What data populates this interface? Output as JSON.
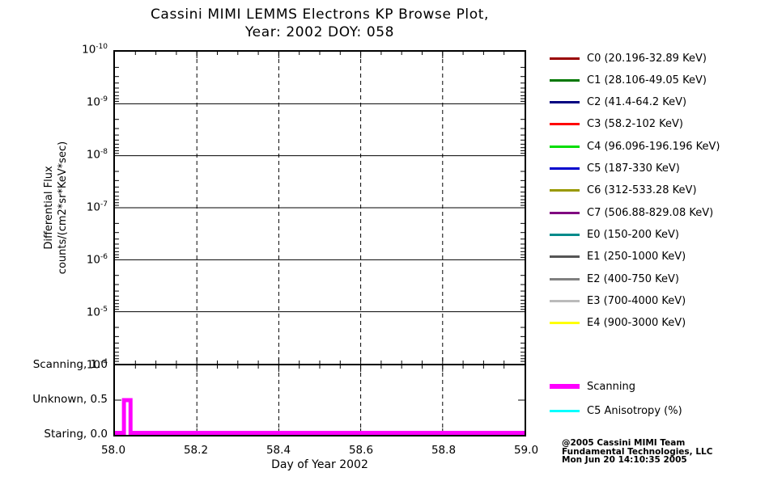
{
  "title": {
    "line1": "Cassini MIMI LEMMS Electrons KP Browse Plot,",
    "line2": "Year: 2002 DOY: 058"
  },
  "axes": {
    "y_label_line1": "Differential Flux",
    "y_label_line2": "counts/(cm2*sr*KeV*sec)",
    "x_label": "Day of Year 2002"
  },
  "status_legend": [
    {
      "label": "Scanning",
      "color": "#FF00FF",
      "thickness": 6
    },
    {
      "label": "C5 Anisotropy (%)",
      "color": "#00FFFF",
      "thickness": 3
    }
  ],
  "credit": {
    "line1": "@2005 Cassini MIMI Team",
    "line2": "Fundamental Technologies, LLC",
    "line3": "Mon Jun 20 14:10:35 2005"
  },
  "chart_data": [
    {
      "type": "line",
      "title": "Cassini MIMI LEMMS Electrons KP Browse Plot, Year: 2002 DOY: 058",
      "xlabel": "Day of Year 2002",
      "ylabel": "Differential Flux counts/(cm2*sr*KeV*sec)",
      "x_range": [
        58.0,
        59.0
      ],
      "x_ticks": [
        58.0,
        58.2,
        58.4,
        58.6,
        58.8,
        59.0
      ],
      "y_scale": "log",
      "y_ticks_top_to_bottom": [
        "1e-10",
        "1e-9",
        "1e-8",
        "1e-7",
        "1e-6",
        "1e-5",
        "1e-4"
      ],
      "y_tick_exponents": [
        -10,
        -9,
        -8,
        -7,
        -6,
        -5,
        -4
      ],
      "grid": {
        "horizontal": "solid",
        "vertical": "dashed"
      },
      "legend_position": "right",
      "series": [
        {
          "name": "C0 (20.196-32.89 KeV)",
          "color": "#990000",
          "values": []
        },
        {
          "name": "C1 (28.106-49.05 KeV)",
          "color": "#007700",
          "values": []
        },
        {
          "name": "C2 (41.4-64.2 KeV)",
          "color": "#000080",
          "values": []
        },
        {
          "name": "C3 (58.2-102 KeV)",
          "color": "#FF0000",
          "values": []
        },
        {
          "name": "C4 (96.096-196.196 KeV)",
          "color": "#00DD00",
          "values": []
        },
        {
          "name": "C5 (187-330 KeV)",
          "color": "#0000CD",
          "values": []
        },
        {
          "name": "C6 (312-533.28 KeV)",
          "color": "#999900",
          "values": []
        },
        {
          "name": "C7 (506.88-829.08 KeV)",
          "color": "#800080",
          "values": []
        },
        {
          "name": "E0 (150-200 KeV)",
          "color": "#008B8B",
          "values": []
        },
        {
          "name": "E1 (250-1000 KeV)",
          "color": "#555555",
          "values": []
        },
        {
          "name": "E2 (400-750 KeV)",
          "color": "#808080",
          "values": []
        },
        {
          "name": "E3 (700-4000 KeV)",
          "color": "#BBBBBB",
          "values": []
        },
        {
          "name": "E4 (900-3000 KeV)",
          "color": "#FFFF00",
          "values": []
        }
      ],
      "note": "No flux data is plotted for this interval; the main plot area is empty."
    },
    {
      "type": "line",
      "name": "pointing-status-panel",
      "x_range": [
        58.0,
        59.0
      ],
      "y_ticks": [
        {
          "value": 1.0,
          "label": "Scanning"
        },
        {
          "value": 0.5,
          "label": "Unknown"
        },
        {
          "value": 0.0,
          "label": "Staring"
        }
      ],
      "series": [
        {
          "name": "Scanning",
          "color": "#FF00FF",
          "points": [
            [
              58.0,
              0.0
            ],
            [
              58.022,
              0.0
            ],
            [
              58.022,
              0.5
            ],
            [
              58.038,
              0.5
            ],
            [
              58.038,
              0.0
            ],
            [
              59.0,
              0.0
            ]
          ]
        },
        {
          "name": "C5 Anisotropy (%)",
          "color": "#00FFFF",
          "points": []
        }
      ]
    }
  ]
}
